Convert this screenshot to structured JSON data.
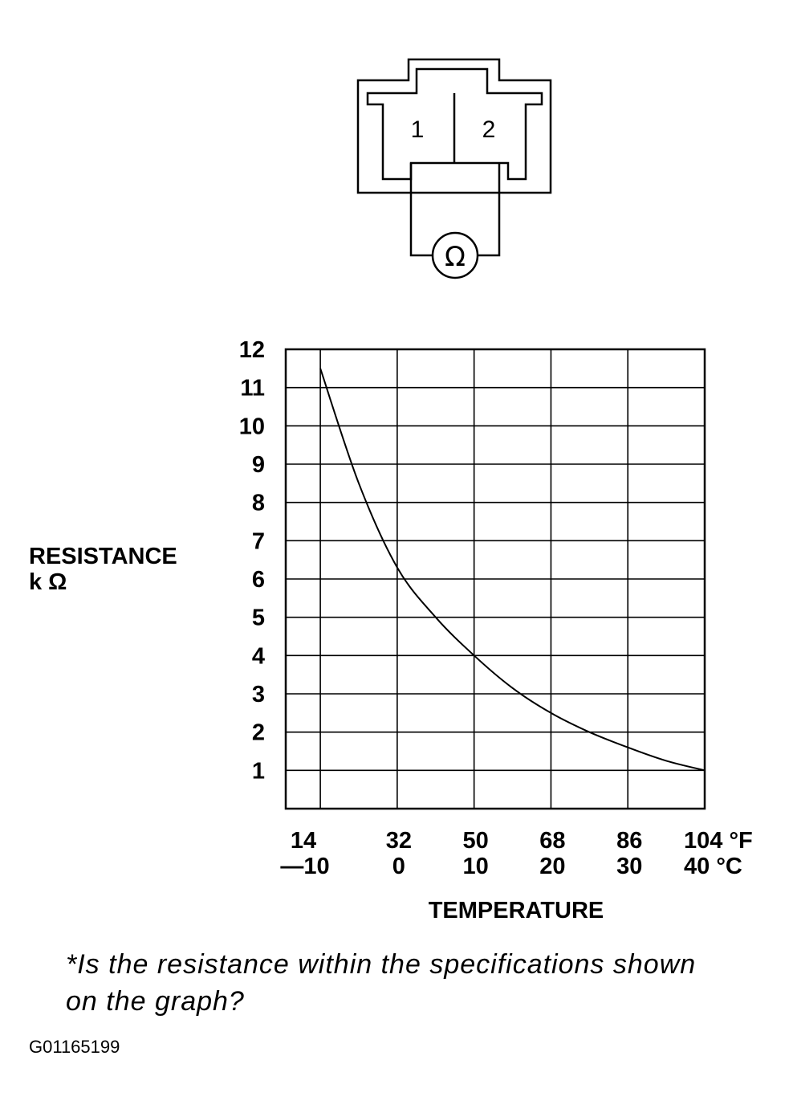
{
  "connector": {
    "pin_labels": [
      "1",
      "2"
    ],
    "meter_symbol": "Ω"
  },
  "chart_data": {
    "type": "line",
    "ylabel": "RESISTANCE",
    "yunit": "k Ω",
    "xlabel": "TEMPERATURE",
    "ylim": [
      0,
      12
    ],
    "xlim": [
      -14.5,
      40
    ],
    "grid": true,
    "y_ticks": [
      "12",
      "11",
      "10",
      "9",
      "8",
      "7",
      "6",
      "5",
      "4",
      "3",
      "2",
      "1"
    ],
    "x_ticks_f": [
      "14",
      "32",
      "50",
      "68",
      "86",
      "104 °F"
    ],
    "x_ticks_c": [
      "—10",
      "0",
      "10",
      "20",
      "30",
      "40 °C"
    ],
    "series": [
      {
        "x": [
          -10,
          -5,
          0,
          5,
          10,
          15,
          20,
          25,
          30,
          35,
          40
        ],
        "y": [
          11.5,
          8.5,
          6.3,
          5.0,
          4.0,
          3.15,
          2.5,
          2.0,
          1.6,
          1.25,
          1.0
        ]
      }
    ]
  },
  "footer": {
    "question_line1": "*Is the resistance within the specifications shown",
    "question_line2": "on the graph?",
    "figure_code": "G01165199"
  }
}
